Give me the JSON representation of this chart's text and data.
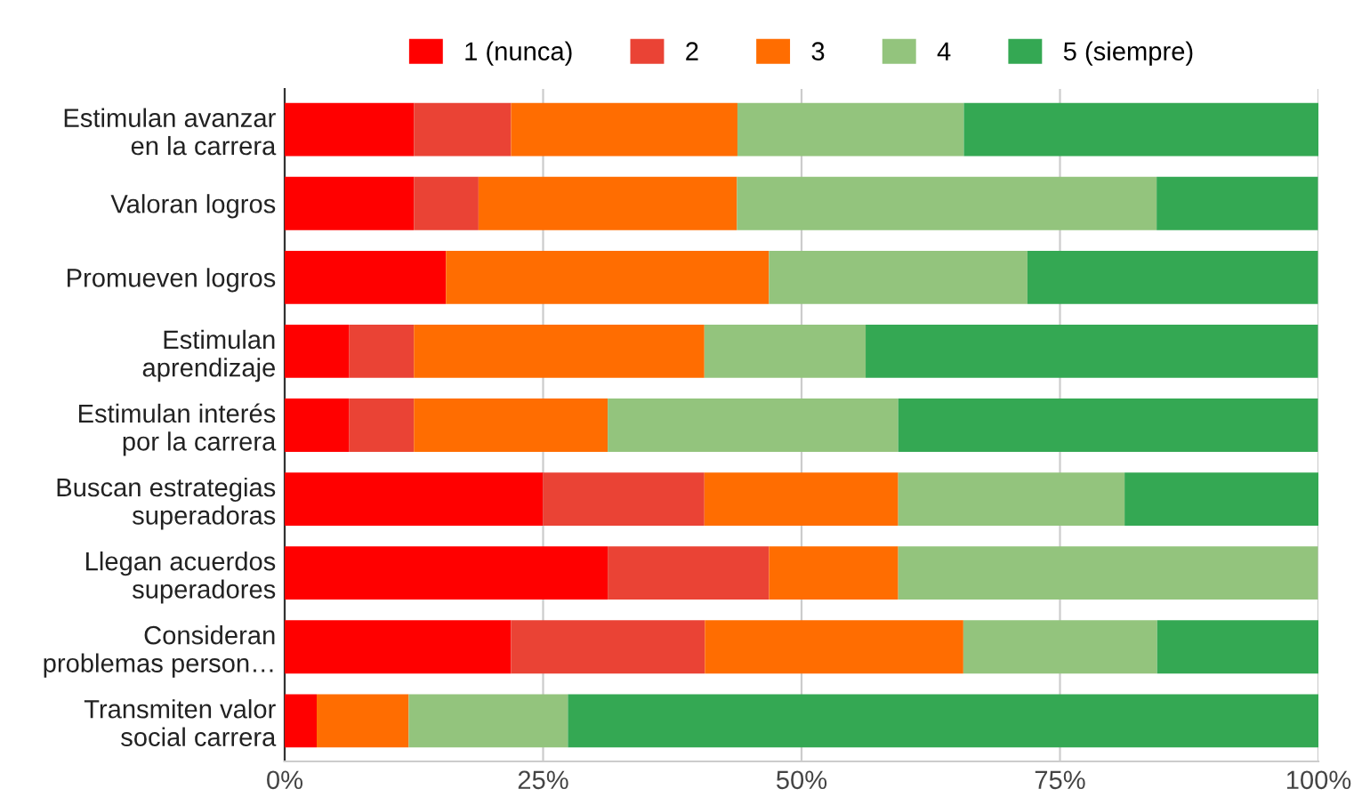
{
  "chart_data": {
    "type": "bar",
    "orientation": "horizontal",
    "stacked": true,
    "legend": "top",
    "grid": "x",
    "categories": [
      "Estimulan avanzar\nen la carrera",
      "Valoran logros",
      "Promueven logros",
      "Estimulan\naprendizaje",
      "Estimulan interés\npor la carrera",
      "Buscan estrategias\nsuperadoras",
      "Llegan acuerdos\nsuperadores",
      "Consideran\nproblemas person…",
      "Transmiten valor\nsocial carrera"
    ],
    "series": [
      {
        "name": "1 (nunca)",
        "color": "#ff0000",
        "values": [
          12.5,
          12.5,
          15.6,
          6.25,
          6.25,
          25,
          31.25,
          21.9,
          3.1
        ]
      },
      {
        "name": "2",
        "color": "#ea4335",
        "values": [
          9.4,
          6.25,
          0,
          6.25,
          6.25,
          15.6,
          15.6,
          18.75,
          0
        ]
      },
      {
        "name": "3",
        "color": "#ff6d01",
        "values": [
          21.9,
          25,
          31.25,
          28.1,
          18.75,
          18.75,
          12.5,
          25,
          8.9
        ]
      },
      {
        "name": "4",
        "color": "#93c47d",
        "values": [
          21.9,
          40.6,
          25,
          15.6,
          28.1,
          21.9,
          40.6,
          18.75,
          15.4
        ]
      },
      {
        "name": "5 (siempre)",
        "color": "#34a853",
        "values": [
          34.4,
          15.6,
          28.1,
          43.75,
          40.6,
          18.75,
          0,
          15.6,
          72.6
        ]
      }
    ],
    "xlim": [
      0,
      100
    ],
    "xticks": [
      {
        "value": 0,
        "label": "0%"
      },
      {
        "value": 25,
        "label": "25%"
      },
      {
        "value": 50,
        "label": "50%"
      },
      {
        "value": 75,
        "label": "75%"
      },
      {
        "value": 100,
        "label": "100%"
      }
    ]
  }
}
